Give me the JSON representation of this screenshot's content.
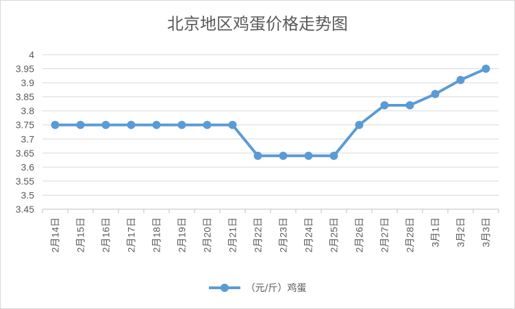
{
  "chart_data": {
    "type": "line",
    "title": "北京地区鸡蛋价格走势图",
    "categories": [
      "2月14日",
      "2月15日",
      "2月16日",
      "2月17日",
      "2月18日",
      "2月19日",
      "2月20日",
      "2月21日",
      "2月22日",
      "2月23日",
      "2月24日",
      "2月25日",
      "2月26日",
      "2月27日",
      "2月28日",
      "3月1日",
      "3月2日",
      "3月3日"
    ],
    "series": [
      {
        "name": "（元/斤）鸡蛋",
        "values": [
          3.75,
          3.75,
          3.75,
          3.75,
          3.75,
          3.75,
          3.75,
          3.75,
          3.64,
          3.64,
          3.64,
          3.64,
          3.75,
          3.82,
          3.82,
          3.86,
          3.91,
          3.95
        ]
      }
    ],
    "yticks": [
      "3.45",
      "3.5",
      "3.55",
      "3.6",
      "3.65",
      "3.7",
      "3.75",
      "3.8",
      "3.85",
      "3.9",
      "3.95",
      "4"
    ],
    "ylim": [
      3.45,
      4
    ],
    "grid": true,
    "legend": "bottom",
    "color": "#5b9bd5"
  }
}
